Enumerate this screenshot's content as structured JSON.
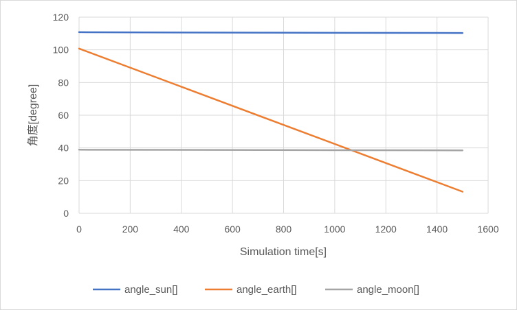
{
  "chart_data": {
    "type": "line",
    "title": "",
    "xlabel": "Simulation time[s]",
    "ylabel": "角度[degree]",
    "xlim": [
      0,
      1600
    ],
    "ylim": [
      0,
      120
    ],
    "x_ticks": [
      0,
      200,
      400,
      600,
      800,
      1000,
      1200,
      1400,
      1600
    ],
    "y_ticks": [
      0,
      20,
      40,
      60,
      80,
      100,
      120
    ],
    "grid": true,
    "legend_position": "bottom",
    "series": [
      {
        "name": "angle_sun[]",
        "color": "#4472c4",
        "x": [
          0,
          375,
          750,
          1125,
          1500
        ],
        "values": [
          110.8,
          110.6,
          110.5,
          110.4,
          110.3
        ]
      },
      {
        "name": "angle_earth[]",
        "color": "#ed7d31",
        "x": [
          0,
          375,
          750,
          1125,
          1500
        ],
        "values": [
          100.8,
          78.9,
          57.0,
          35.1,
          13.2
        ]
      },
      {
        "name": "angle_moon[]",
        "color": "#a5a5a5",
        "x": [
          0,
          375,
          750,
          1125,
          1500
        ],
        "values": [
          38.9,
          38.8,
          38.7,
          38.6,
          38.5
        ]
      }
    ]
  }
}
